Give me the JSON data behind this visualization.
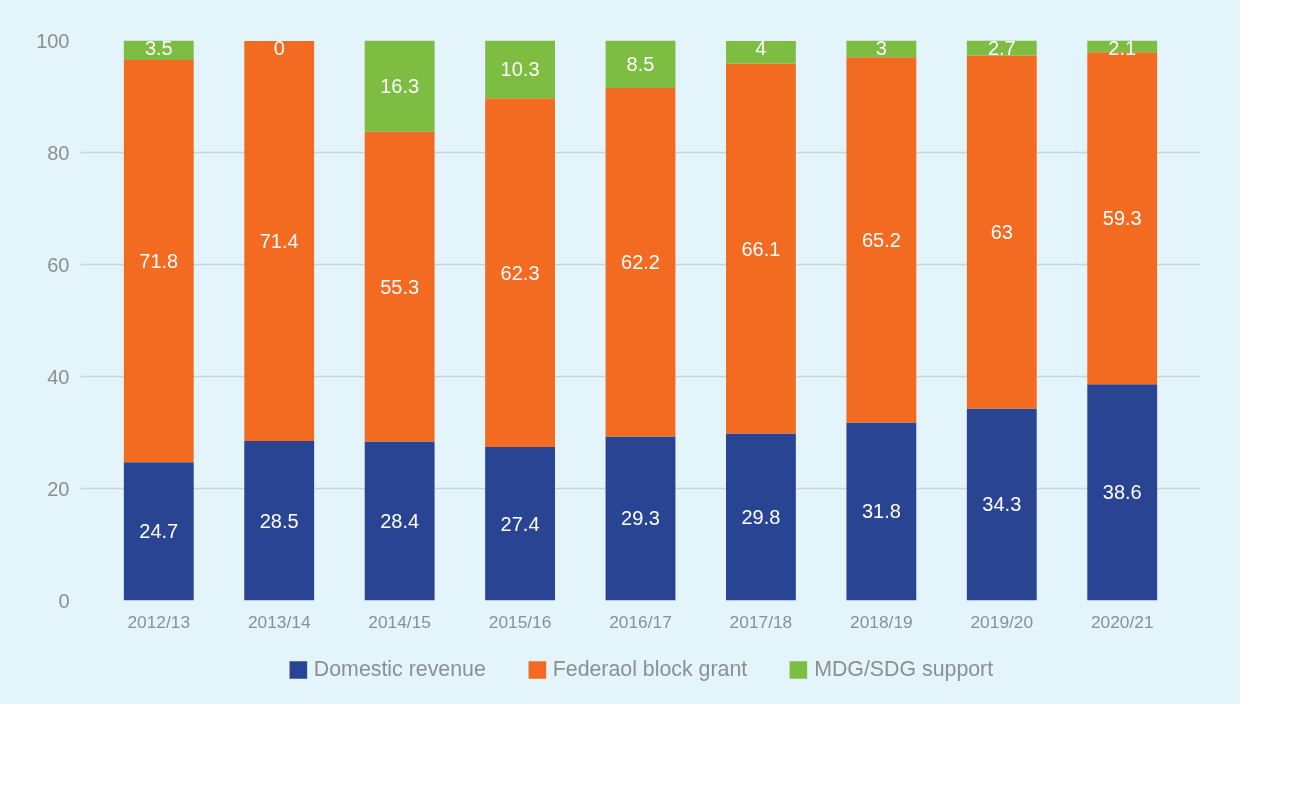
{
  "chart_data": {
    "type": "bar",
    "stacked": true,
    "categories": [
      "2012/13",
      "2013/14",
      "2014/15",
      "2015/16",
      "2016/17",
      "2017/18",
      "2018/19",
      "2019/20",
      "2020/21"
    ],
    "series": [
      {
        "name": "Domestic revenue",
        "color": "#2a4494",
        "values": [
          24.7,
          28.5,
          28.4,
          27.4,
          29.3,
          29.8,
          31.8,
          34.3,
          38.6
        ]
      },
      {
        "name": "Federaol block grant",
        "color": "#f26b21",
        "values": [
          71.8,
          71.4,
          55.3,
          62.3,
          62.2,
          66.1,
          65.2,
          63,
          59.3
        ]
      },
      {
        "name": "MDG/SDG support",
        "color": "#7cbd42",
        "values": [
          3.5,
          0,
          16.3,
          10.3,
          8.5,
          4,
          3,
          2.7,
          2.1
        ]
      }
    ],
    "ylim": [
      0,
      100
    ],
    "yticks": [
      0,
      20,
      40,
      60,
      80,
      100
    ],
    "grid": "y",
    "legend": "bottom",
    "data_labels": true
  }
}
